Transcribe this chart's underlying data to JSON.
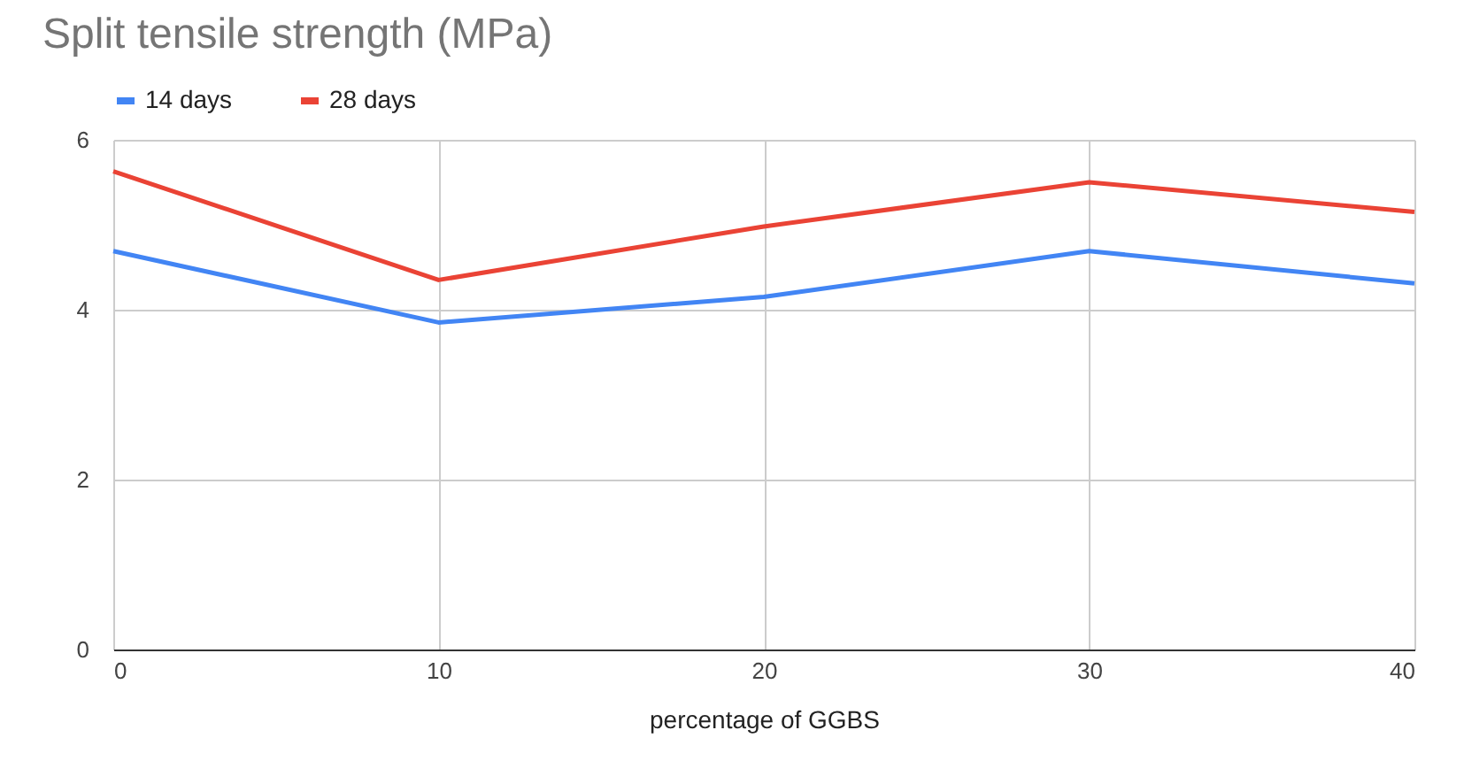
{
  "chart_data": {
    "type": "line",
    "title": "Split tensile strength (MPa)",
    "xlabel": "percentage of GGBS",
    "x": [
      0,
      10,
      20,
      30,
      40
    ],
    "series": [
      {
        "name": "14 days",
        "color": "#4285f4",
        "values": [
          4.69,
          3.85,
          4.15,
          4.69,
          4.31
        ]
      },
      {
        "name": "28 days",
        "color": "#ea4335",
        "values": [
          5.63,
          4.35,
          4.98,
          5.5,
          5.15
        ]
      }
    ],
    "xlim": [
      0,
      40
    ],
    "xticks": [
      0,
      10,
      20,
      30,
      40
    ],
    "ylim": [
      0,
      6
    ],
    "yticks": [
      0,
      2,
      4,
      6
    ],
    "grid": true,
    "legend": "top",
    "marker": "none",
    "line_style": "solid"
  }
}
